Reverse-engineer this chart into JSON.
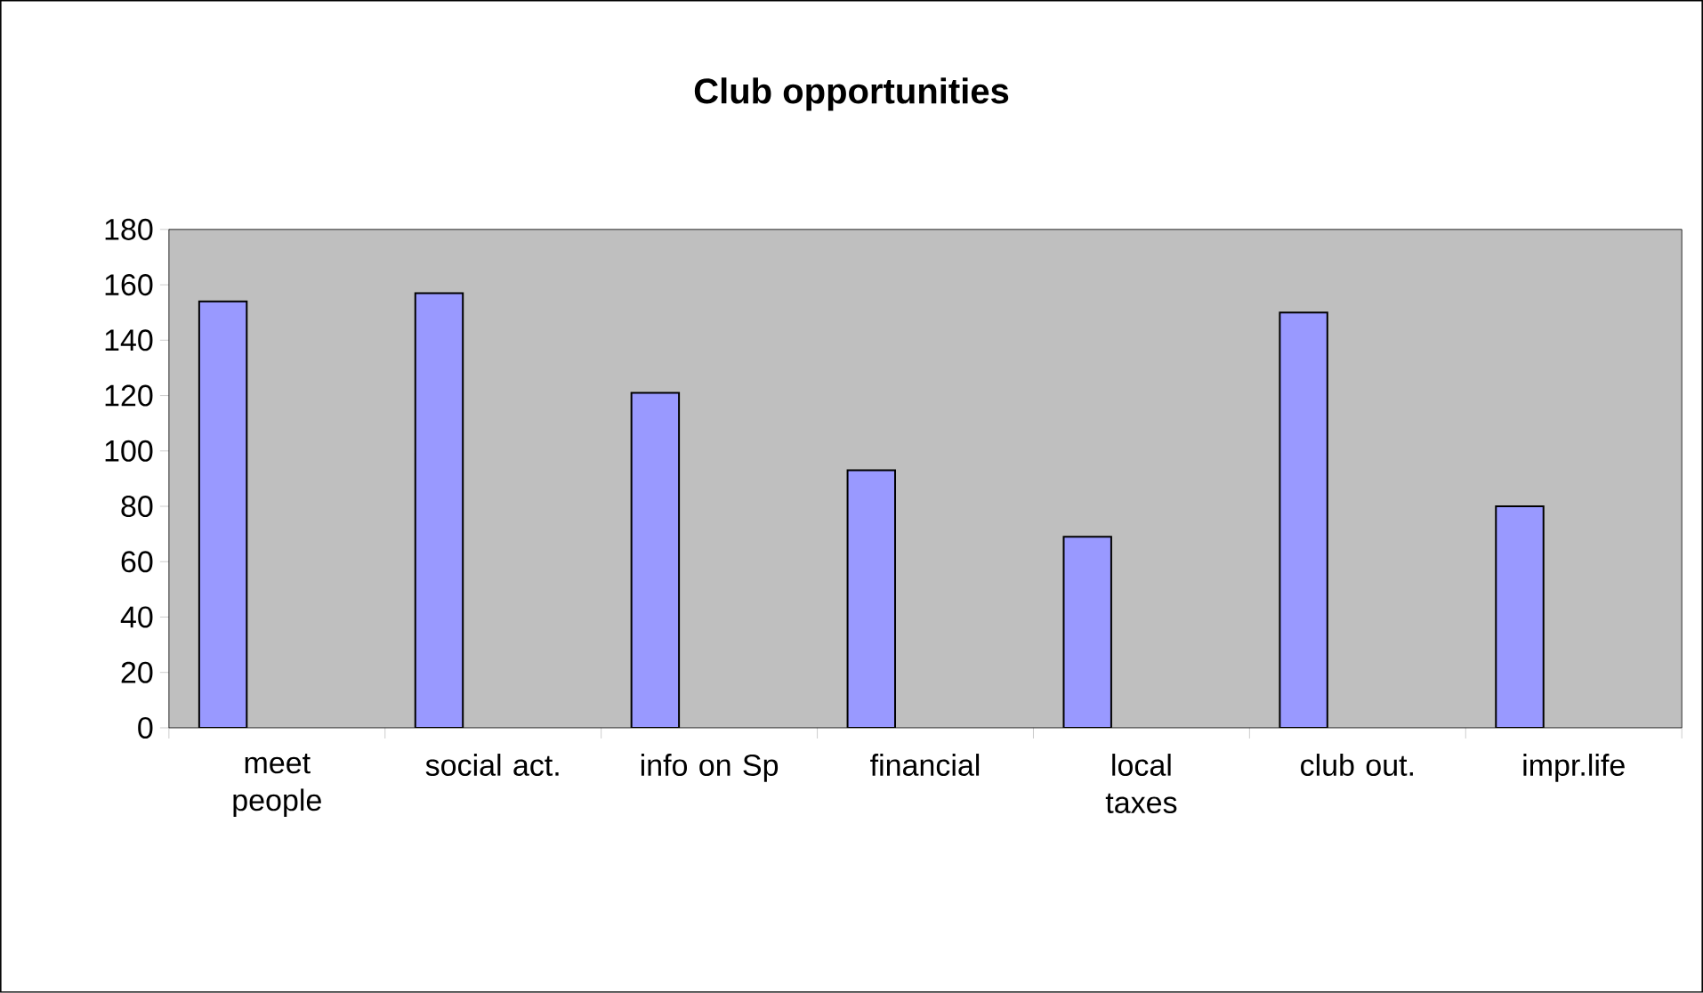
{
  "chart_data": {
    "type": "bar",
    "title": "Club opportunities",
    "categories": [
      "meet people",
      "social act.",
      "info on Sp",
      "financial",
      "local taxes",
      "club out.",
      "impr.life"
    ],
    "values": [
      154,
      157,
      121,
      93,
      69,
      150,
      80
    ],
    "color": "#9999ff",
    "ylim": [
      0,
      180
    ],
    "yticks": [
      0,
      20,
      40,
      60,
      80,
      100,
      120,
      140,
      160,
      180
    ],
    "grid": false
  }
}
